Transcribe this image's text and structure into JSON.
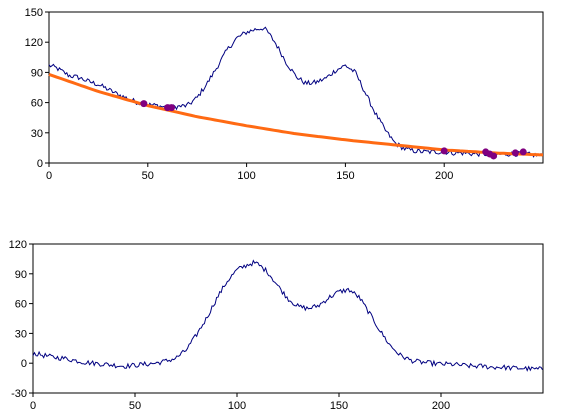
{
  "colors": {
    "signal": "#000080",
    "fit_curve": "#ff6a13",
    "fit_points": "#800080",
    "axes": "#000000",
    "background": "#ffffff"
  },
  "chart_data": [
    {
      "type": "line",
      "title": "",
      "xlabel": "",
      "ylabel": "",
      "xlim": [
        0,
        250
      ],
      "ylim": [
        0,
        150
      ],
      "x_ticks": [
        "0",
        "50",
        "100",
        "150",
        "200"
      ],
      "y_ticks": [
        "150",
        "120",
        "90",
        "60",
        "30",
        "0"
      ],
      "grid": false,
      "legend": "none",
      "series": [
        {
          "kind": "noisy-line",
          "x": [
            0,
            3,
            5,
            10,
            15,
            20,
            25,
            30,
            35,
            40,
            45,
            50,
            55,
            60,
            65,
            70,
            75,
            80,
            85,
            90,
            95,
            100,
            105,
            108,
            110,
            115,
            120,
            125,
            130,
            135,
            140,
            145,
            150,
            155,
            160,
            165,
            170,
            175,
            180,
            185,
            190,
            195,
            200,
            205,
            210,
            215,
            220,
            225,
            230,
            235,
            240,
            245,
            250
          ],
          "y": [
            97,
            95,
            93,
            87,
            85,
            81,
            78,
            73,
            68,
            64,
            60,
            58,
            57,
            55,
            56,
            57,
            65,
            79,
            95,
            112,
            124,
            130,
            133,
            134,
            132,
            118,
            100,
            86,
            79,
            80,
            84,
            92,
            97,
            90,
            70,
            50,
            33,
            20,
            14,
            12,
            11,
            11,
            11,
            10,
            10,
            9,
            9,
            8,
            9,
            9,
            9,
            8,
            7
          ]
        },
        {
          "kind": "smooth-line",
          "x": [
            0,
            25,
            50,
            75,
            100,
            125,
            150,
            175,
            200,
            225,
            250
          ],
          "y": [
            88,
            71,
            57,
            46,
            37,
            29,
            23,
            18,
            13,
            10,
            8
          ]
        },
        {
          "kind": "points",
          "x": [
            48,
            60,
            62,
            200,
            221,
            223,
            225,
            236,
            240
          ],
          "y": [
            59,
            55,
            55,
            12,
            11,
            9,
            7,
            10,
            11
          ]
        }
      ]
    },
    {
      "type": "line",
      "title": "",
      "xlabel": "",
      "ylabel": "",
      "xlim": [
        0,
        250
      ],
      "ylim": [
        -30,
        120
      ],
      "x_ticks": [
        "0",
        "50",
        "100",
        "150",
        "200"
      ],
      "y_ticks": [
        "120",
        "90",
        "60",
        "30",
        "0",
        "-30"
      ],
      "grid": false,
      "legend": "none",
      "series": [
        {
          "kind": "noisy-line",
          "x": [
            0,
            5,
            10,
            15,
            20,
            25,
            30,
            35,
            40,
            45,
            50,
            55,
            60,
            65,
            70,
            75,
            80,
            85,
            90,
            95,
            100,
            105,
            108,
            110,
            115,
            120,
            125,
            130,
            135,
            140,
            145,
            150,
            155,
            160,
            165,
            170,
            175,
            180,
            185,
            190,
            195,
            200,
            205,
            210,
            215,
            220,
            225,
            230,
            235,
            240,
            245,
            250
          ],
          "y": [
            10,
            8,
            6,
            5,
            3,
            1,
            0,
            -1,
            -2,
            -3,
            -2,
            -1,
            0,
            2,
            5,
            13,
            28,
            45,
            65,
            82,
            94,
            99,
            101,
            100,
            92,
            78,
            65,
            57,
            55,
            58,
            66,
            72,
            74,
            66,
            50,
            33,
            18,
            8,
            3,
            1,
            0,
            -1,
            -1,
            -2,
            -3,
            -3,
            -4,
            -4,
            -5,
            -5,
            -6,
            -6
          ]
        }
      ]
    }
  ]
}
